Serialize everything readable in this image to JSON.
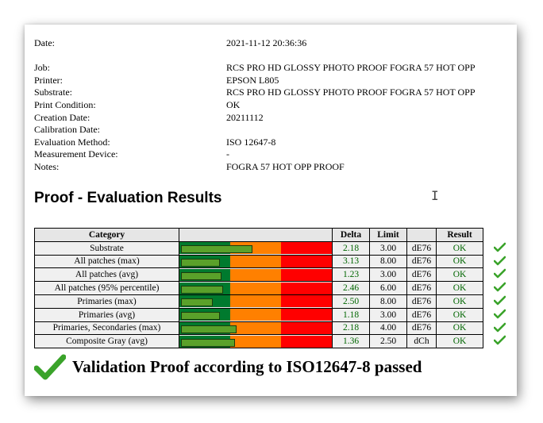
{
  "meta": [
    {
      "label": "Date:",
      "value": "2021-11-12 20:36:36"
    },
    {
      "label": "",
      "value": ""
    },
    {
      "label": "Job:",
      "value": "RCS PRO HD GLOSSY PHOTO PROOF FOGRA 57 HOT OPP"
    },
    {
      "label": "Printer:",
      "value": "EPSON L805"
    },
    {
      "label": "Substrate:",
      "value": "RCS PRO HD GLOSSY PHOTO PROOF FOGRA 57 HOT OPP"
    },
    {
      "label": "Print Condition:",
      "value": "OK"
    },
    {
      "label": "Creation Date:",
      "value": "20211112"
    },
    {
      "label": "Calibration Date:",
      "value": ""
    },
    {
      "label": "Evaluation Method:",
      "value": "ISO 12647-8"
    },
    {
      "label": "Measurement Device:",
      "value": "-"
    },
    {
      "label": "Notes:",
      "value": "FOGRA 57 HOT OPP PROOF"
    }
  ],
  "section_title": "Proof - Evaluation Results",
  "table": {
    "headers": {
      "category": "Category",
      "bar": "",
      "delta": "Delta",
      "limit": "Limit",
      "unit": "",
      "result": "Result"
    },
    "rows": [
      {
        "category": "Substrate",
        "delta": "2.18",
        "limit": "3.00",
        "unit": "dE76",
        "result": "OK",
        "level": 0.47
      },
      {
        "category": "All patches (max)",
        "delta": "3.13",
        "limit": "8.00",
        "unit": "dE76",
        "result": "OK",
        "level": 0.25
      },
      {
        "category": "All patches (avg)",
        "delta": "1.23",
        "limit": "3.00",
        "unit": "dE76",
        "result": "OK",
        "level": 0.26
      },
      {
        "category": "All patches (95% percentile)",
        "delta": "2.46",
        "limit": "6.00",
        "unit": "dE76",
        "result": "OK",
        "level": 0.27
      },
      {
        "category": "Primaries (max)",
        "delta": "2.50",
        "limit": "8.00",
        "unit": "dE76",
        "result": "OK",
        "level": 0.2
      },
      {
        "category": "Primaries (avg)",
        "delta": "1.18",
        "limit": "3.00",
        "unit": "dE76",
        "result": "OK",
        "level": 0.25
      },
      {
        "category": "Primaries, Secondaries (max)",
        "delta": "2.18",
        "limit": "4.00",
        "unit": "dE76",
        "result": "OK",
        "level": 0.36
      },
      {
        "category": "Composite Gray (avg)",
        "delta": "1.36",
        "limit": "2.50",
        "unit": "dCh",
        "result": "OK",
        "level": 0.35
      }
    ]
  },
  "verdict": "Validation Proof according to ISO12647-8 passed",
  "icons": {
    "row_check": "checkmark-icon",
    "verdict_check": "checkmark-icon",
    "cursor": "text-cursor-icon"
  },
  "colors": {
    "good": "#007a2e",
    "warn": "#ff8000",
    "bad": "#ff0000",
    "fill": "#5aa12a",
    "ok_text": "#006600",
    "check": "#3aa32a"
  }
}
